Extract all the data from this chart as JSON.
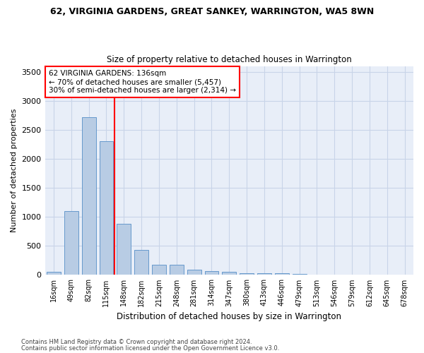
{
  "title1": "62, VIRGINIA GARDENS, GREAT SANKEY, WARRINGTON, WA5 8WN",
  "title2": "Size of property relative to detached houses in Warrington",
  "xlabel": "Distribution of detached houses by size in Warrington",
  "ylabel": "Number of detached properties",
  "categories": [
    "16sqm",
    "49sqm",
    "82sqm",
    "115sqm",
    "148sqm",
    "182sqm",
    "215sqm",
    "248sqm",
    "281sqm",
    "314sqm",
    "347sqm",
    "380sqm",
    "413sqm",
    "446sqm",
    "479sqm",
    "513sqm",
    "546sqm",
    "579sqm",
    "612sqm",
    "645sqm",
    "678sqm"
  ],
  "values": [
    50,
    1100,
    2720,
    2300,
    880,
    430,
    170,
    170,
    90,
    60,
    55,
    30,
    30,
    30,
    15,
    10,
    5,
    0,
    0,
    0,
    0
  ],
  "bar_color": "#b8cce4",
  "bar_edge_color": "#6699cc",
  "red_line_x": 3.45,
  "annotation_text": "62 VIRGINIA GARDENS: 136sqm\n← 70% of detached houses are smaller (5,457)\n30% of semi-detached houses are larger (2,314) →",
  "annotation_box_color": "white",
  "annotation_box_edge_color": "red",
  "red_line_color": "red",
  "grid_color": "#c8d4e8",
  "bg_color": "#e8eef8",
  "ylim": [
    0,
    3600
  ],
  "yticks": [
    0,
    500,
    1000,
    1500,
    2000,
    2500,
    3000,
    3500
  ],
  "footer1": "Contains HM Land Registry data © Crown copyright and database right 2024.",
  "footer2": "Contains public sector information licensed under the Open Government Licence v3.0."
}
